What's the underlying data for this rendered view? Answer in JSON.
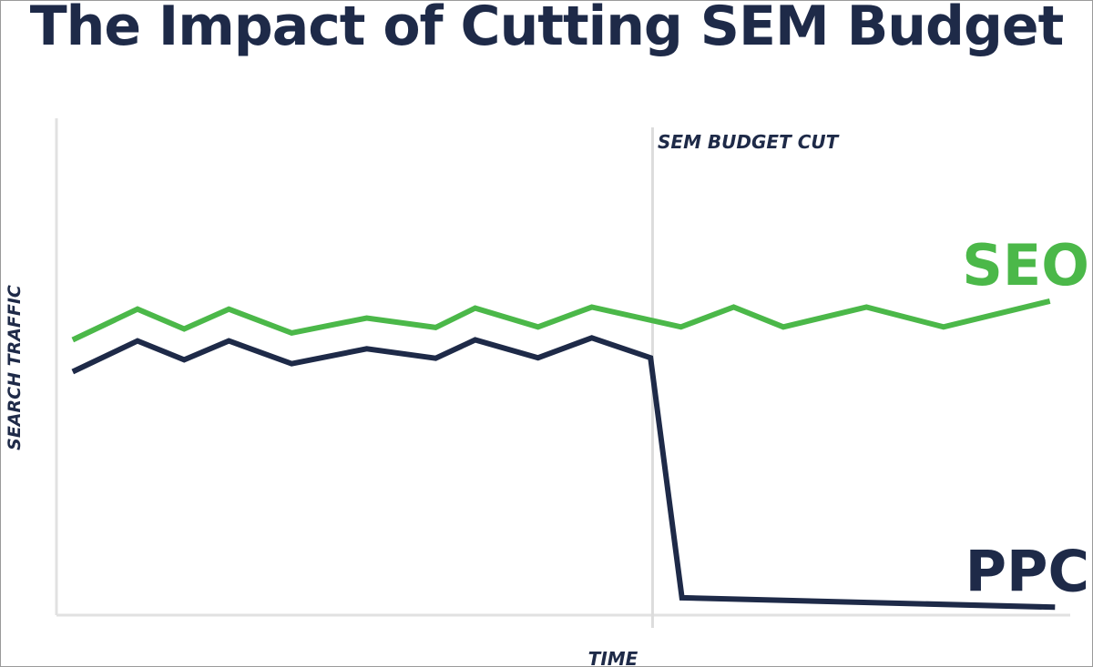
{
  "chart_data": {
    "type": "line",
    "title": "The Impact of Cutting SEM Budget",
    "xlabel": "TIME",
    "ylabel": "SEARCH TRAFFIC",
    "annotation": "SEM BUDGET CUT",
    "xlim": [
      0,
      100
    ],
    "ylim": [
      0,
      100
    ],
    "grid": false,
    "cut_x": 58.8,
    "series": [
      {
        "name": "SEO",
        "color": "#4bb849",
        "x": [
          1.6,
          8.0,
          12.6,
          17.0,
          23.2,
          30.6,
          37.4,
          41.3,
          47.5,
          52.8,
          61.6,
          66.8,
          71.7,
          79.9,
          87.5,
          98.0
        ],
        "y": [
          55.4,
          61.6,
          57.6,
          61.6,
          56.8,
          59.8,
          57.9,
          61.8,
          58.0,
          62.0,
          58.0,
          62.0,
          58.0,
          62.0,
          58.0,
          63.2
        ]
      },
      {
        "name": "PPC",
        "color": "#1e2a48",
        "x": [
          1.6,
          8.0,
          12.6,
          17.0,
          23.2,
          30.6,
          37.4,
          41.3,
          47.5,
          52.8,
          58.6,
          61.7,
          98.5
        ],
        "y": [
          49.0,
          55.2,
          51.4,
          55.2,
          50.6,
          53.6,
          51.7,
          55.4,
          51.8,
          55.8,
          51.8,
          3.5,
          1.6
        ]
      }
    ]
  }
}
